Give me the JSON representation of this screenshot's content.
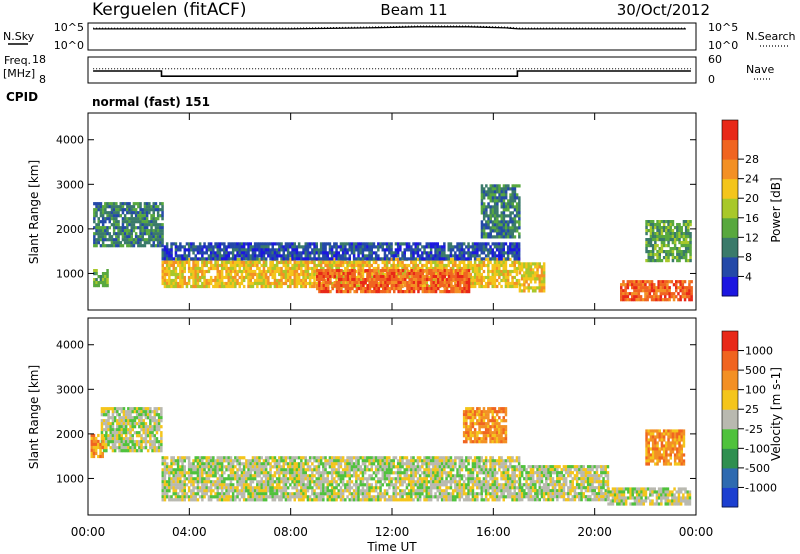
{
  "header": {
    "station": "Kerguelen (fitACF)",
    "beam": "Beam 11",
    "date": "30/Oct/2012"
  },
  "panel_labels": {
    "nsky": "N.Sky",
    "nsky_hi": "10^5",
    "nsky_lo": "10^0",
    "nsearch": "N.Search",
    "nsearch_hi": "10^5",
    "nsearch_lo": "10^0",
    "freq": "Freq.",
    "freq_unit": "[MHz]",
    "freq_hi": "18",
    "freq_lo": "8",
    "nave": "Nave",
    "nave_hi": "60",
    "nave_lo": "0",
    "cpid": "CPID",
    "cpid_value": "normal (fast) 151"
  },
  "chart_data": [
    {
      "type": "line",
      "title": "N.Sky / N.Search",
      "x_range_hours": [
        0,
        24
      ],
      "series": [
        {
          "name": "N.Sky",
          "x": [
            0.2,
            1.0,
            4.0,
            8.0,
            11.0,
            13.0,
            15.0,
            16.5,
            17.0,
            20.0,
            23.6
          ],
          "y": [
            3.9,
            3.9,
            3.9,
            3.9,
            4.1,
            4.3,
            4.3,
            4.1,
            3.9,
            3.9,
            3.9
          ]
        }
      ],
      "ylim_log10": [
        0,
        5
      ]
    },
    {
      "type": "line",
      "title": "Freq. / Nave",
      "x_range_hours": [
        0,
        24
      ],
      "series": [
        {
          "name": "Freq.",
          "x": [
            0.2,
            2.9,
            2.9,
            16.95,
            16.95,
            23.8
          ],
          "y": [
            12.6,
            12.6,
            10.6,
            10.6,
            12.6,
            12.6
          ]
        },
        {
          "name": "Nave",
          "x": [
            0.2,
            23.8
          ],
          "y": [
            33,
            33
          ]
        }
      ],
      "freq_ylim": [
        8,
        18
      ],
      "nave_ylim": [
        0,
        60
      ]
    },
    {
      "type": "heatmap",
      "title": "Power",
      "xlabel": "Time UT",
      "ylabel": "Slant Range [km]",
      "x_range_hours": [
        0,
        24
      ],
      "y_range_km": [
        180,
        4600
      ],
      "x_ticks": [
        "00:00",
        "04:00",
        "08:00",
        "12:00",
        "16:00",
        "20:00",
        "00:00"
      ],
      "y_ticks": [
        1000,
        2000,
        3000,
        4000
      ],
      "colorbar": {
        "label": "Power [dB]",
        "ticks": [
          "4",
          "8",
          "12",
          "16",
          "20",
          "24",
          "28"
        ],
        "colors": [
          "#1c16e0",
          "#2449a8",
          "#3a7a6a",
          "#58a83e",
          "#a8c82a",
          "#f4c51b",
          "#f39024",
          "#f06420",
          "#e82818"
        ]
      },
      "regions": [
        {
          "t0": 2.9,
          "t1": 17.0,
          "r0": 680,
          "r1": 1350,
          "level": 5
        },
        {
          "t0": 9.0,
          "t1": 15.0,
          "r0": 600,
          "r1": 1100,
          "level": 7
        },
        {
          "t0": 17.0,
          "t1": 18.0,
          "r0": 600,
          "r1": 1250,
          "level": 5
        },
        {
          "t0": 21.0,
          "t1": 23.8,
          "r0": 400,
          "r1": 850,
          "level": 7
        },
        {
          "t0": 0.2,
          "t1": 2.9,
          "r0": 1600,
          "r1": 2600,
          "level": 2
        },
        {
          "t0": 2.9,
          "t1": 17.0,
          "r0": 1300,
          "r1": 1700,
          "level": 1
        },
        {
          "t0": 15.5,
          "t1": 17.0,
          "r0": 1800,
          "r1": 3000,
          "level": 2
        },
        {
          "t0": 0.2,
          "t1": 0.8,
          "r0": 700,
          "r1": 1100,
          "level": 3
        },
        {
          "t0": 22.0,
          "t1": 23.8,
          "r0": 1300,
          "r1": 2200,
          "level": 3
        }
      ]
    },
    {
      "type": "heatmap",
      "title": "Velocity",
      "xlabel": "Time UT",
      "ylabel": "Slant Range [km]",
      "x_range_hours": [
        0,
        24
      ],
      "y_range_km": [
        180,
        4600
      ],
      "x_ticks": [
        "00:00",
        "04:00",
        "08:00",
        "12:00",
        "16:00",
        "20:00",
        "00:00"
      ],
      "y_ticks": [
        1000,
        2000,
        3000,
        4000
      ],
      "colorbar": {
        "label": "Velocity [m s-1]",
        "ticks": [
          "1000",
          "500",
          "100",
          "25",
          "-25",
          "-100",
          "-500",
          "-1000"
        ],
        "colors": [
          "#1c3fd0",
          "#2e6ab0",
          "#2f8f50",
          "#4fc23c",
          "#b9b9b0",
          "#f4c51b",
          "#f39024",
          "#f06420",
          "#e82818"
        ]
      },
      "regions": [
        {
          "t0": 2.9,
          "t1": 17.0,
          "r0": 500,
          "r1": 1500,
          "level": 4
        },
        {
          "t0": 0.5,
          "t1": 2.9,
          "r0": 1600,
          "r1": 2600,
          "level": 4
        },
        {
          "t0": 17.0,
          "t1": 20.5,
          "r0": 500,
          "r1": 1300,
          "level": 4
        },
        {
          "t0": 20.5,
          "t1": 23.8,
          "r0": 400,
          "r1": 800,
          "level": 4
        },
        {
          "t0": 0.1,
          "t1": 0.6,
          "r0": 1500,
          "r1": 2000,
          "level": 6
        },
        {
          "t0": 22.0,
          "t1": 23.5,
          "r0": 1300,
          "r1": 2100,
          "level": 6
        },
        {
          "t0": 14.8,
          "t1": 16.5,
          "r0": 1800,
          "r1": 2600,
          "level": 6
        }
      ]
    }
  ]
}
